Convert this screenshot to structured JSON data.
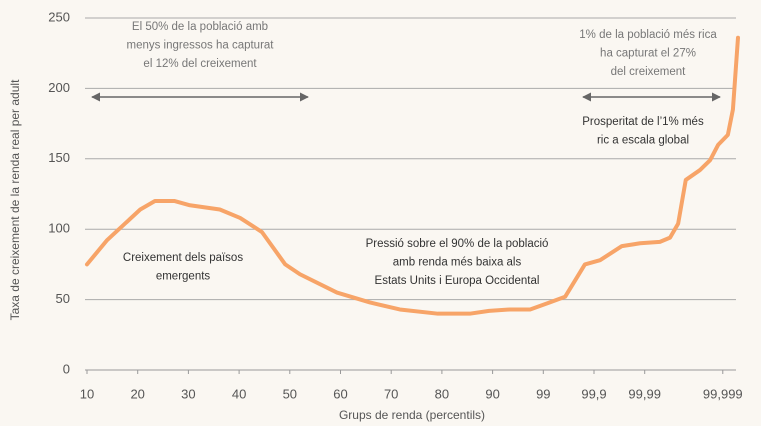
{
  "chart_data": {
    "type": "line",
    "x_label": "Grups de renda (percentils)",
    "y_label": "Taxa de creixement de la renda real per adult",
    "x": [
      0,
      0.39,
      1.05,
      1.34,
      1.73,
      2.03,
      2.62,
      3.02,
      3.45,
      3.91,
      4.2,
      4.93,
      5.58,
      6.17,
      6.92,
      7.55,
      7.93,
      8.34,
      8.74,
      9.13,
      9.43,
      9.82,
      10.12,
      10.55,
      10.91,
      11.3,
      11.5,
      11.66,
      11.81,
      12.09,
      12.29,
      12.45,
      12.64,
      12.74,
      12.84
    ],
    "values": [
      75,
      92,
      114,
      120,
      120,
      117,
      114,
      108,
      98,
      75,
      68,
      55,
      48,
      43,
      40,
      40,
      42,
      43,
      43,
      48,
      52,
      75,
      78,
      88,
      90,
      91,
      94,
      104,
      135,
      142,
      149,
      160,
      167,
      185,
      236
    ],
    "color": "#f7a468",
    "xlim": [
      0,
      12.9
    ],
    "xticks": [
      {
        "value": 0,
        "label": "10"
      },
      {
        "value": 1,
        "label": "20"
      },
      {
        "value": 2,
        "label": "30"
      },
      {
        "value": 3,
        "label": "40"
      },
      {
        "value": 4,
        "label": "50"
      },
      {
        "value": 5,
        "label": "60"
      },
      {
        "value": 6,
        "label": "70"
      },
      {
        "value": 7,
        "label": "80"
      },
      {
        "value": 8,
        "label": "90"
      },
      {
        "value": 9,
        "label": "99"
      },
      {
        "value": 10,
        "label": "99,9"
      },
      {
        "value": 11,
        "label": "99,99"
      },
      {
        "value": 12.54,
        "label": "99,999"
      }
    ],
    "ylim": [
      0,
      250
    ],
    "yticks": [
      0,
      50,
      100,
      150,
      200,
      250
    ],
    "grid": true,
    "annotations": [
      {
        "lines": [
          "El 50% de la població amb",
          "menys ingressos ha capturat",
          "el 12% del creixement"
        ]
      },
      {
        "lines": [
          "1% de la població més rica",
          "ha capturat el 27%",
          "del creixement"
        ]
      },
      {
        "lines": [
          "Prosperitat de l’1% més",
          "ric a escala global"
        ]
      },
      {
        "lines": [
          "Creixement dels països",
          "emergents"
        ]
      },
      {
        "lines": [
          "Pressió sobre el 90% de la població",
          "amb renda més baixa als",
          "Estats Units i Europa Occidental"
        ]
      }
    ]
  }
}
